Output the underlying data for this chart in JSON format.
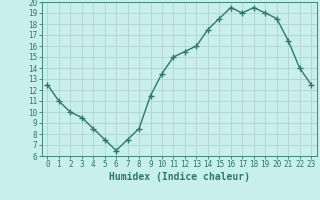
{
  "x": [
    0,
    1,
    2,
    3,
    4,
    5,
    6,
    7,
    8,
    9,
    10,
    11,
    12,
    13,
    14,
    15,
    16,
    17,
    18,
    19,
    20,
    21,
    22,
    23
  ],
  "y": [
    12.5,
    11.0,
    10.0,
    9.5,
    8.5,
    7.5,
    6.5,
    7.5,
    8.5,
    11.5,
    13.5,
    15.0,
    15.5,
    16.0,
    17.5,
    18.5,
    19.5,
    19.0,
    19.5,
    19.0,
    18.5,
    16.5,
    14.0,
    12.5
  ],
  "line_color": "#2a7a6e",
  "marker": "+",
  "markersize": 4,
  "linewidth": 1.0,
  "bg_color": "#c8eeee",
  "grid_color": "#aacccc",
  "xlabel": "Humidex (Indice chaleur)",
  "xlim": [
    -0.5,
    23.5
  ],
  "ylim": [
    6,
    20
  ],
  "xticks": [
    0,
    1,
    2,
    3,
    4,
    5,
    6,
    7,
    8,
    9,
    10,
    11,
    12,
    13,
    14,
    15,
    16,
    17,
    18,
    19,
    20,
    21,
    22,
    23
  ],
  "yticks": [
    6,
    7,
    8,
    9,
    10,
    11,
    12,
    13,
    14,
    15,
    16,
    17,
    18,
    19,
    20
  ],
  "tick_color": "#2a7a6e",
  "xlabel_fontsize": 7,
  "tick_fontsize": 5.5
}
